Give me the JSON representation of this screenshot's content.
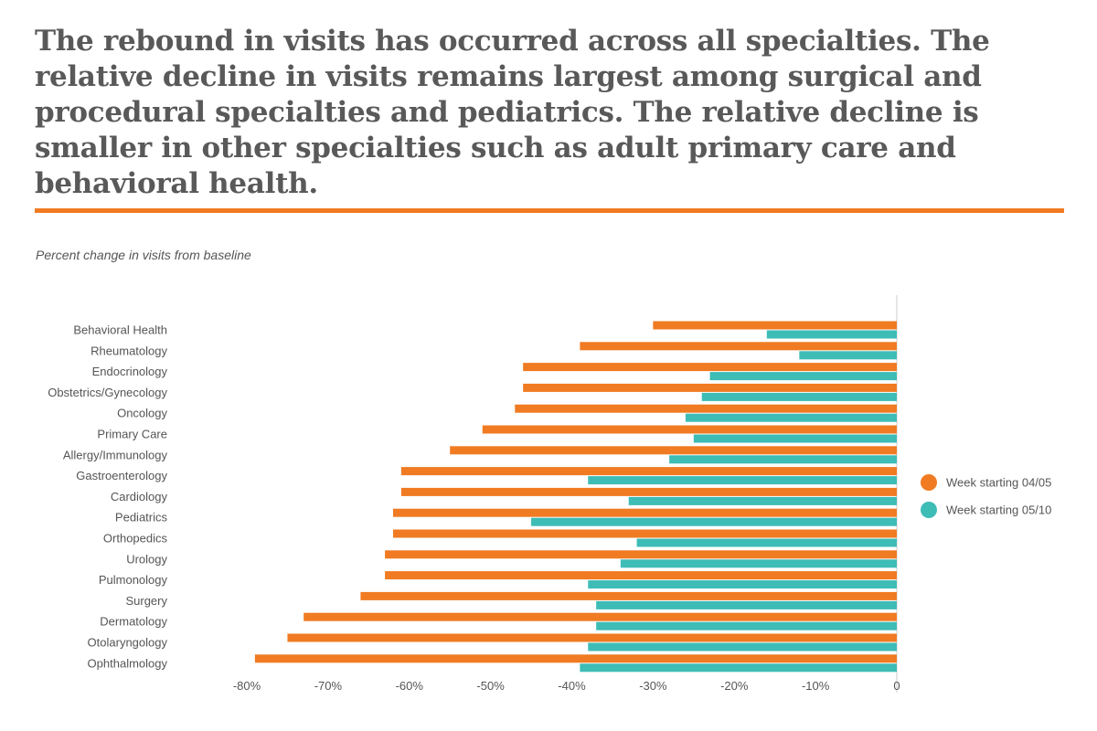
{
  "headline": "The rebound in visits has occurred across all specialties. The relative decline in visits remains largest among surgical and procedural specialties and pediatrics. The relative decline is smaller in other specialties such as adult primary care and behavioral health.",
  "colors": {
    "accent": "#F07B22",
    "teal": "#3EBCB6",
    "headline_text": "#595959",
    "axis_text": "#555555"
  },
  "chart_data": {
    "type": "bar",
    "orientation": "horizontal",
    "subtitle": "Percent change in visits from baseline",
    "categories": [
      "Behavioral Health",
      "Rheumatology",
      "Endocrinology",
      "Obstetrics/Gynecology",
      "Oncology",
      "Primary Care",
      "Allergy/Immunology",
      "Gastroenterology",
      "Cardiology",
      "Pediatrics",
      "Orthopedics",
      "Urology",
      "Pulmonology",
      "Surgery",
      "Dermatology",
      "Otolaryngology",
      "Ophthalmology"
    ],
    "series": [
      {
        "name": "Week starting 04/05",
        "color": "#F07B22",
        "values": [
          -30,
          -39,
          -46,
          -46,
          -47,
          -51,
          -55,
          -61,
          -61,
          -62,
          -62,
          -63,
          -63,
          -66,
          -73,
          -75,
          -79
        ]
      },
      {
        "name": "Week starting 05/10",
        "color": "#3EBCB6",
        "values": [
          -16,
          -12,
          -23,
          -24,
          -26,
          -25,
          -28,
          -38,
          -33,
          -45,
          -32,
          -34,
          -38,
          -37,
          -37,
          -38,
          -39
        ]
      }
    ],
    "xlim": [
      -83,
      0
    ],
    "ticks": [
      -80,
      -70,
      -60,
      -50,
      -40,
      -30,
      -20,
      -10,
      0
    ],
    "tick_labels": [
      "-80%",
      "-70%",
      "-60%",
      "-50%",
      "-40%",
      "-30%",
      "-20%",
      "-10%",
      "0"
    ],
    "legend_position": "right",
    "grid": false
  }
}
